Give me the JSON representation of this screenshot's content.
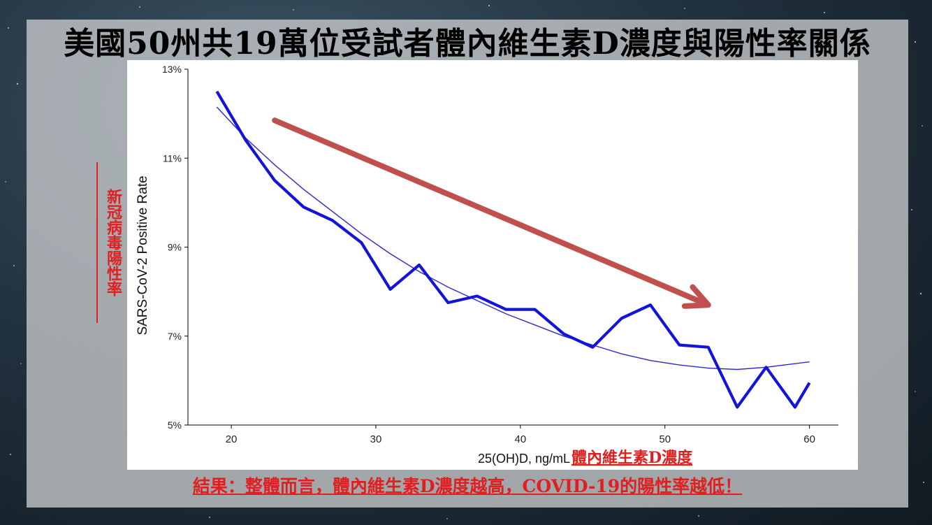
{
  "title": "美國50州共19萬位受試者體內維生素D濃度與陽性率關係",
  "side_label": "新冠病毒陽性率",
  "conclusion": "結果：整體而言，體內維生素D濃度越高，COVID-19的陽性率越低！",
  "colors": {
    "line": "#1414d8",
    "fit": "#2a2ad0",
    "arrow": "#c0504d",
    "accent_red": "#e02020"
  },
  "chart_data": {
    "type": "line",
    "title": "",
    "xlabel": "25(OH)D, ng/mL",
    "xlabel_annotation": "體內維生素D濃度",
    "ylabel": "SARS-CoV-2 Positive Rate",
    "xlim": [
      17,
      62
    ],
    "ylim": [
      5,
      13
    ],
    "x_ticks": [
      20,
      30,
      40,
      50,
      60
    ],
    "y_ticks": [
      5,
      7,
      9,
      11,
      13
    ],
    "y_tick_labels": [
      "5%",
      "7%",
      "9%",
      "11%",
      "13%"
    ],
    "grid": false,
    "series": [
      {
        "role": "observed",
        "x": [
          19,
          21,
          23,
          25,
          27,
          29,
          31,
          33,
          35,
          37,
          39,
          41,
          43,
          45,
          47,
          49,
          51,
          53,
          55,
          57,
          59,
          60
        ],
        "values": [
          12.5,
          11.4,
          10.5,
          9.9,
          9.6,
          9.1,
          8.05,
          8.6,
          7.75,
          7.9,
          7.6,
          7.6,
          7.05,
          6.75,
          7.4,
          7.7,
          6.8,
          6.75,
          5.4,
          6.3,
          5.4,
          5.95
        ]
      },
      {
        "role": "trend",
        "x": [
          19,
          21,
          23,
          25,
          27,
          29,
          31,
          33,
          35,
          37,
          39,
          41,
          43,
          45,
          47,
          49,
          51,
          53,
          55,
          57,
          59,
          60
        ],
        "values": [
          12.15,
          11.45,
          10.85,
          10.3,
          9.8,
          9.3,
          8.85,
          8.45,
          8.1,
          7.8,
          7.5,
          7.25,
          7.0,
          6.8,
          6.6,
          6.45,
          6.35,
          6.28,
          6.25,
          6.3,
          6.38,
          6.42
        ]
      }
    ],
    "annotation_arrow": {
      "x_start": 23,
      "y_start": 11.85,
      "x_end": 53,
      "y_end": 7.7
    }
  }
}
